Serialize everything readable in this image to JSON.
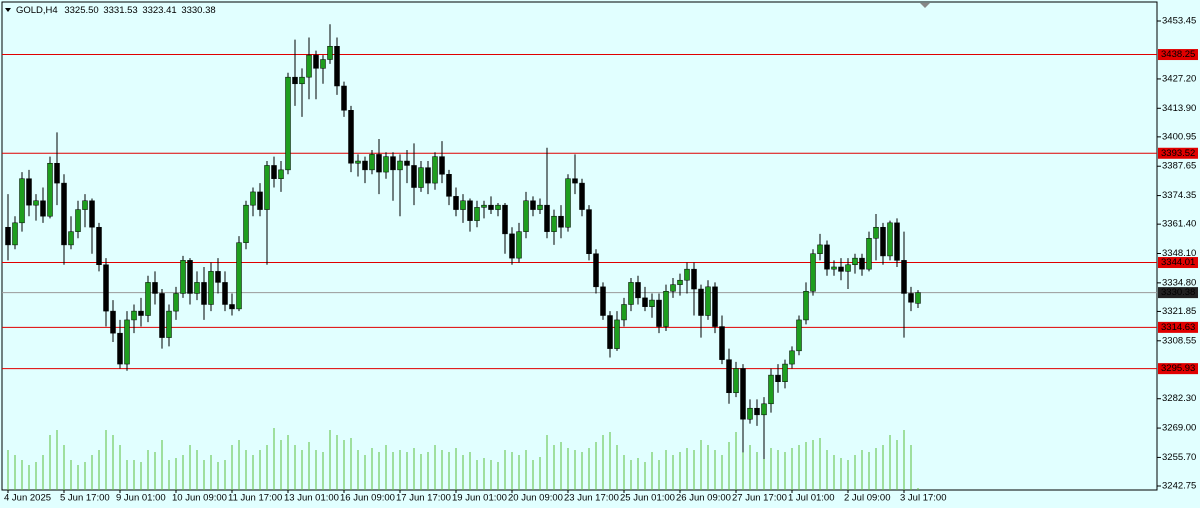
{
  "chart_data": {
    "type": "candlestick",
    "symbol": "GOLD,H4",
    "header_values": [
      "3325.50",
      "3331.53",
      "3323.41",
      "3330.38"
    ],
    "categories": [
      "4 Jun 2025",
      null,
      null,
      null,
      null,
      null,
      null,
      null,
      "5 Jun 17:00",
      null,
      null,
      null,
      null,
      null,
      null,
      null,
      "9 Jun 01:00",
      null,
      null,
      null,
      null,
      null,
      null,
      null,
      "10 Jun 09:00",
      null,
      null,
      null,
      null,
      null,
      null,
      null,
      "11 Jun 17:00",
      null,
      null,
      null,
      null,
      null,
      null,
      null,
      "13 Jun 01:00",
      null,
      null,
      null,
      null,
      null,
      null,
      null,
      "16 Jun 09:00",
      null,
      null,
      null,
      null,
      null,
      null,
      null,
      "17 Jun 17:00",
      null,
      null,
      null,
      null,
      null,
      null,
      null,
      "19 Jun 01:00",
      null,
      null,
      null,
      null,
      null,
      null,
      null,
      "20 Jun 09:00",
      null,
      null,
      null,
      null,
      null,
      null,
      null,
      "23 Jun 17:00",
      null,
      null,
      null,
      null,
      null,
      null,
      null,
      "25 Jun 01:00",
      null,
      null,
      null,
      null,
      null,
      null,
      null,
      "26 Jun 09:00",
      null,
      null,
      null,
      null,
      null,
      null,
      null,
      "27 Jun 17:00",
      null,
      null,
      null,
      null,
      null,
      null,
      null,
      "1 Jul 01:00",
      null,
      null,
      null,
      null,
      null,
      null,
      null,
      "2 Jul 09:00",
      null,
      null,
      null,
      null,
      null,
      null,
      null,
      "3 Jul 17:00",
      null,
      null
    ],
    "open": [
      3360,
      3352,
      3362,
      3382,
      3370,
      3372,
      3365,
      3389,
      3380,
      3352,
      3358,
      3368,
      3372,
      3360,
      3343,
      3322,
      3312,
      3298,
      3318,
      3322,
      3320,
      3335,
      3330,
      3310,
      3322,
      3330,
      3345,
      3330,
      3335,
      3325,
      3340,
      3335,
      3325,
      3323,
      3353,
      3370,
      3376,
      3368,
      3388,
      3382,
      3386,
      3428,
      3425,
      3428,
      3438,
      3432,
      3436,
      3442,
      3424,
      3413,
      3389,
      3390,
      3386,
      3393,
      3385,
      3392,
      3386,
      3390,
      3388,
      3378,
      3387,
      3380,
      3392,
      3384,
      3374,
      3368,
      3372,
      3363,
      3369,
      3370,
      3368,
      3370,
      3357,
      3346,
      3358,
      3372,
      3368,
      3370,
      3358,
      3365,
      3360,
      3382,
      3380,
      3368,
      3348,
      3333,
      3320,
      3305,
      3318,
      3325,
      3335,
      3328,
      3324,
      3327,
      3315,
      3331,
      3334,
      3336,
      3341,
      3332,
      3320,
      3333,
      3315,
      3300,
      3285,
      3296,
      3273,
      3278,
      3275,
      3280,
      3293,
      3290,
      3298,
      3304,
      3318,
      3331,
      3348,
      3352,
      3341,
      3342,
      3340,
      3343,
      3346,
      3341,
      3355,
      3360,
      3347,
      3362,
      3345,
      3330,
      3325.5
    ],
    "high": [
      3375,
      3365,
      3385,
      3386,
      3375,
      3378,
      3392,
      3403,
      3384,
      3365,
      3372,
      3375,
      3373,
      3362,
      3346,
      3327,
      3318,
      3322,
      3325,
      3328,
      3338,
      3340,
      3332,
      3325,
      3333,
      3347,
      3346,
      3340,
      3342,
      3344,
      3346,
      3340,
      3330,
      3356,
      3372,
      3378,
      3380,
      3390,
      3392,
      3390,
      3430,
      3445,
      3432,
      3446,
      3440,
      3438,
      3452,
      3446,
      3426,
      3415,
      3393,
      3392,
      3395,
      3400,
      3394,
      3394,
      3393,
      3395,
      3398,
      3390,
      3390,
      3394,
      3399,
      3386,
      3378,
      3375,
      3373,
      3372,
      3372,
      3374,
      3371,
      3371,
      3360,
      3362,
      3376,
      3374,
      3373,
      3396,
      3368,
      3370,
      3384,
      3393,
      3382,
      3370,
      3350,
      3335,
      3322,
      3322,
      3328,
      3337,
      3338,
      3333,
      3330,
      3330,
      3334,
      3337,
      3339,
      3344,
      3344,
      3334,
      3336,
      3335,
      3320,
      3305,
      3299,
      3298,
      3282,
      3282,
      3283,
      3296,
      3298,
      3300,
      3306,
      3320,
      3335,
      3350,
      3357,
      3354,
      3345,
      3346,
      3346,
      3348,
      3348,
      3358,
      3366,
      3362,
      3363,
      3364,
      3358,
      3333,
      3331.53
    ],
    "low": [
      3345,
      3350,
      3358,
      3365,
      3363,
      3362,
      3364,
      3370,
      3343,
      3350,
      3355,
      3360,
      3348,
      3340,
      3315,
      3308,
      3296,
      3295,
      3312,
      3315,
      3317,
      3325,
      3305,
      3306,
      3318,
      3328,
      3325,
      3327,
      3318,
      3322,
      3330,
      3322,
      3320,
      3322,
      3350,
      3365,
      3365,
      3343,
      3378,
      3376,
      3384,
      3415,
      3410,
      3418,
      3418,
      3425,
      3434,
      3420,
      3410,
      3385,
      3383,
      3380,
      3384,
      3375,
      3382,
      3372,
      3365,
      3380,
      3370,
      3376,
      3375,
      3377,
      3380,
      3370,
      3365,
      3362,
      3358,
      3360,
      3364,
      3366,
      3365,
      3348,
      3343,
      3344,
      3355,
      3365,
      3366,
      3355,
      3352,
      3355,
      3358,
      3375,
      3365,
      3345,
      3330,
      3318,
      3301,
      3304,
      3315,
      3322,
      3325,
      3322,
      3319,
      3312,
      3313,
      3328,
      3329,
      3330,
      3320,
      3310,
      3318,
      3312,
      3298,
      3280,
      3283,
      3258,
      3271,
      3270,
      3255,
      3276,
      3285,
      3287,
      3296,
      3302,
      3316,
      3329,
      3345,
      3338,
      3338,
      3336,
      3332,
      3339,
      3338,
      3340,
      3345,
      3343,
      3345,
      3342,
      3310,
      3322,
      3323.41
    ],
    "close": [
      3352,
      3362,
      3382,
      3370,
      3372,
      3365,
      3389,
      3380,
      3352,
      3358,
      3368,
      3372,
      3360,
      3343,
      3322,
      3312,
      3298,
      3318,
      3322,
      3320,
      3335,
      3330,
      3310,
      3322,
      3330,
      3345,
      3330,
      3335,
      3325,
      3340,
      3335,
      3325,
      3323,
      3353,
      3370,
      3376,
      3368,
      3388,
      3382,
      3386,
      3428,
      3425,
      3428,
      3438,
      3432,
      3436,
      3442,
      3424,
      3413,
      3389,
      3390,
      3386,
      3393,
      3385,
      3392,
      3386,
      3390,
      3388,
      3378,
      3387,
      3380,
      3392,
      3384,
      3374,
      3368,
      3372,
      3363,
      3369,
      3370,
      3368,
      3370,
      3357,
      3346,
      3358,
      3372,
      3368,
      3370,
      3358,
      3365,
      3360,
      3382,
      3380,
      3368,
      3348,
      3333,
      3320,
      3305,
      3318,
      3325,
      3335,
      3328,
      3324,
      3327,
      3315,
      3331,
      3334,
      3336,
      3341,
      3332,
      3320,
      3333,
      3315,
      3300,
      3285,
      3296,
      3273,
      3278,
      3275,
      3280,
      3293,
      3290,
      3298,
      3304,
      3318,
      3331,
      3348,
      3352,
      3341,
      3342,
      3340,
      3343,
      3346,
      3341,
      3355,
      3360,
      3347,
      3362,
      3345,
      3330,
      3326,
      3330.38
    ],
    "up_color": "#1e9e1e",
    "down_color": "#000000",
    "wick_color": "#000000",
    "volume": {
      "color": "#5cbf3c",
      "values": [
        40,
        35,
        30,
        25,
        28,
        35,
        55,
        60,
        45,
        30,
        25,
        28,
        35,
        40,
        60,
        55,
        45,
        30,
        30,
        28,
        40,
        38,
        50,
        30,
        32,
        35,
        45,
        40,
        30,
        35,
        28,
        30,
        45,
        50,
        40,
        35,
        40,
        45,
        62,
        50,
        55,
        45,
        40,
        48,
        40,
        38,
        60,
        55,
        50,
        52,
        40,
        35,
        42,
        38,
        45,
        38,
        40,
        38,
        42,
        36,
        38,
        45,
        40,
        38,
        42,
        35,
        38,
        30,
        32,
        30,
        28,
        40,
        38,
        35,
        40,
        30,
        33,
        55,
        45,
        48,
        42,
        40,
        38,
        42,
        48,
        55,
        58,
        45,
        35,
        30,
        32,
        28,
        38,
        30,
        40,
        35,
        38,
        42,
        40,
        50,
        45,
        40,
        35,
        48,
        58,
        68,
        45,
        38,
        55,
        42,
        40,
        38,
        42,
        45,
        48,
        50,
        52,
        40,
        35,
        32,
        30,
        35,
        40,
        38,
        42,
        45,
        55,
        50,
        60,
        45,
        2
      ]
    },
    "ylim": [
      3240.94,
      3462.06
    ],
    "yticks": [
      3453.45,
      {
        "value": 3427.2,
        "label": "3427.20"
      },
      {
        "value": 3413.9,
        "label": "3413.90"
      },
      3400.95,
      3387.65,
      3374.35,
      {
        "value": 3361.4,
        "label": "3361.40"
      },
      {
        "value": 3348.1,
        "label": "3348.10"
      },
      {
        "value": 3334.8,
        "label": "3334.80"
      },
      3321.85,
      3308.55,
      {
        "value": 3282.3,
        "label": "3282.30"
      },
      {
        "value": 3269,
        "label": "3269.00"
      },
      {
        "value": 3255.7,
        "label": "3255.70"
      },
      3242.75
    ],
    "levels": {
      "color": "#e00000",
      "values": [
        3438.25,
        3393.52,
        3344.01,
        3314.63,
        3295.93
      ]
    },
    "current_price": 3330.38,
    "current_color": "#9a9a9a"
  }
}
